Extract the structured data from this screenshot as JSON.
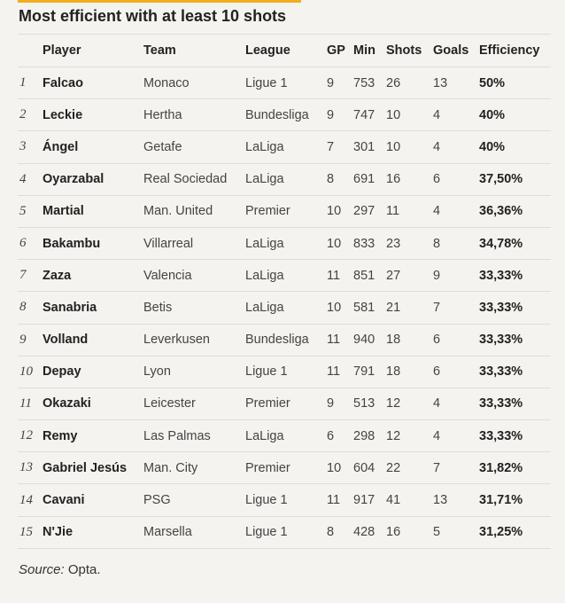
{
  "title": "Most efficient with at least 10 shots",
  "columns": {
    "player": "Player",
    "team": "Team",
    "league": "League",
    "gp": "GP",
    "min": "Min",
    "shots": "Shots",
    "goals": "Goals",
    "efficiency": "Efficiency"
  },
  "rows": [
    {
      "rank": "1",
      "player": "Falcao",
      "team": "Monaco",
      "league": "Ligue 1",
      "gp": "9",
      "min": "753",
      "shots": "26",
      "goals": "13",
      "efficiency": "50%"
    },
    {
      "rank": "2",
      "player": "Leckie",
      "team": "Hertha",
      "league": "Bundesliga",
      "gp": "9",
      "min": "747",
      "shots": "10",
      "goals": "4",
      "efficiency": "40%"
    },
    {
      "rank": "3",
      "player": "Ángel",
      "team": "Getafe",
      "league": "LaLiga",
      "gp": "7",
      "min": "301",
      "shots": "10",
      "goals": "4",
      "efficiency": "40%"
    },
    {
      "rank": "4",
      "player": "Oyarzabal",
      "team": "Real Sociedad",
      "league": "LaLiga",
      "gp": "8",
      "min": "691",
      "shots": "16",
      "goals": "6",
      "efficiency": "37,50%"
    },
    {
      "rank": "5",
      "player": "Martial",
      "team": "Man. United",
      "league": "Premier",
      "gp": "10",
      "min": "297",
      "shots": "11",
      "goals": "4",
      "efficiency": "36,36%"
    },
    {
      "rank": "6",
      "player": "Bakambu",
      "team": "Villarreal",
      "league": "LaLiga",
      "gp": "10",
      "min": "833",
      "shots": "23",
      "goals": "8",
      "efficiency": "34,78%"
    },
    {
      "rank": "7",
      "player": "Zaza",
      "team": "Valencia",
      "league": "LaLiga",
      "gp": "11",
      "min": "851",
      "shots": "27",
      "goals": "9",
      "efficiency": "33,33%"
    },
    {
      "rank": "8",
      "player": "Sanabria",
      "team": "Betis",
      "league": "LaLiga",
      "gp": "10",
      "min": "581",
      "shots": "21",
      "goals": "7",
      "efficiency": "33,33%"
    },
    {
      "rank": "9",
      "player": "Volland",
      "team": "Leverkusen",
      "league": "Bundesliga",
      "gp": "11",
      "min": "940",
      "shots": "18",
      "goals": "6",
      "efficiency": "33,33%"
    },
    {
      "rank": "10",
      "player": "Depay",
      "team": "Lyon",
      "league": "Ligue 1",
      "gp": "11",
      "min": "791",
      "shots": "18",
      "goals": "6",
      "efficiency": "33,33%"
    },
    {
      "rank": "11",
      "player": "Okazaki",
      "team": "Leicester",
      "league": "Premier",
      "gp": "9",
      "min": "513",
      "shots": "12",
      "goals": "4",
      "efficiency": "33,33%"
    },
    {
      "rank": "12",
      "player": "Remy",
      "team": "Las Palmas",
      "league": "LaLiga",
      "gp": "6",
      "min": "298",
      "shots": "12",
      "goals": "4",
      "efficiency": "33,33%"
    },
    {
      "rank": "13",
      "player": "Gabriel Jesús",
      "team": "Man. City",
      "league": "Premier",
      "gp": "10",
      "min": "604",
      "shots": "22",
      "goals": "7",
      "efficiency": "31,82%"
    },
    {
      "rank": "14",
      "player": "Cavani",
      "team": "PSG",
      "league": "Ligue 1",
      "gp": "11",
      "min": "917",
      "shots": "41",
      "goals": "13",
      "efficiency": "31,71%"
    },
    {
      "rank": "15",
      "player": "N'Jie",
      "team": "Marsella",
      "league": "Ligue 1",
      "gp": "8",
      "min": "428",
      "shots": "16",
      "goals": "5",
      "efficiency": "31,25%"
    }
  ],
  "source": {
    "label": "Source:",
    "value": "Opta."
  },
  "colors": {
    "accent": "#f2ae1c",
    "background": "#f4f3ef",
    "rule": "#dddddd"
  }
}
